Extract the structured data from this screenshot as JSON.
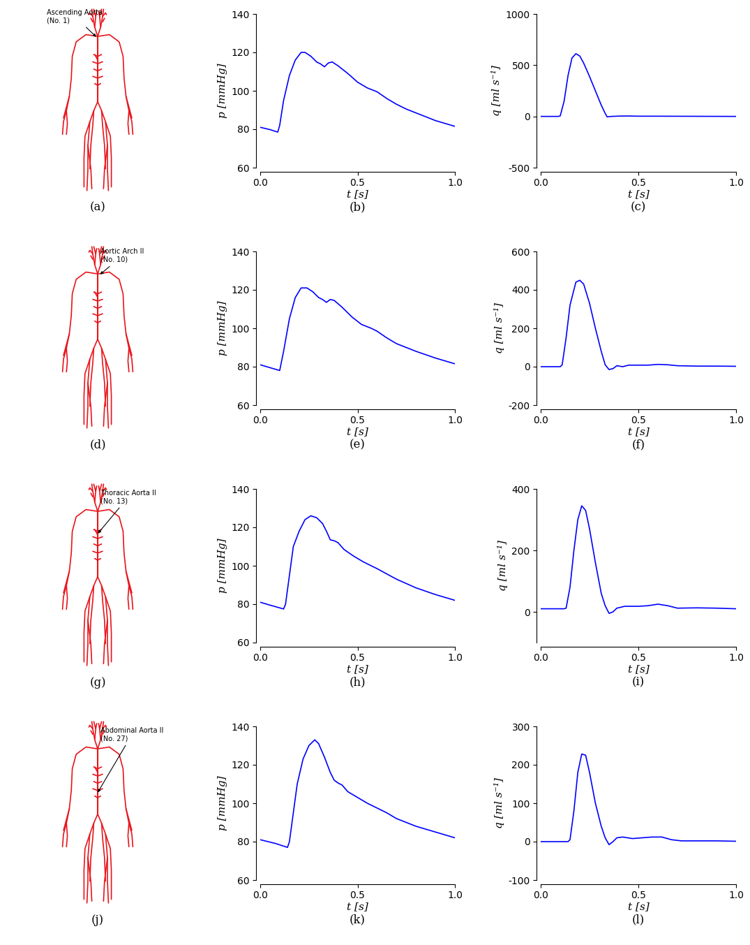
{
  "diagrams": [
    {
      "annotation": "Ascending Aorta\n(No. 1)",
      "caption": "(a)"
    },
    {
      "annotation": "Aortic Arch II\n(No. 10)",
      "caption": "(d)"
    },
    {
      "annotation": "Thoracic Aorta II\n(No. 13)",
      "caption": "(g)"
    },
    {
      "annotation": "Abdominal Aorta II\n(No. 27)",
      "caption": "(j)"
    }
  ],
  "chart_data": [
    {
      "type": "line",
      "caption": "(b)",
      "xlabel": "t [s]",
      "ylabel": "p [mmHg]",
      "color": "#0000ff",
      "x": [
        0.0,
        0.05,
        0.09,
        0.1,
        0.12,
        0.15,
        0.18,
        0.21,
        0.23,
        0.26,
        0.29,
        0.31,
        0.33,
        0.35,
        0.37,
        0.4,
        0.45,
        0.5,
        0.55,
        0.6,
        0.65,
        0.7,
        0.75,
        0.8,
        0.85,
        0.9,
        0.95,
        1.0
      ],
      "values": [
        81,
        79.8,
        78.5,
        82,
        95,
        108,
        116,
        120,
        120,
        118,
        115,
        114,
        112.5,
        114.5,
        115,
        113,
        109,
        104.5,
        101.5,
        99.5,
        96,
        93,
        90.5,
        88.5,
        86.5,
        84.5,
        83,
        81.5
      ],
      "xlim": [
        0.0,
        1.0
      ],
      "xticks": [
        0.0,
        0.5,
        1.0
      ],
      "ylim": [
        60,
        140
      ],
      "yticks": [
        60,
        80,
        100,
        120,
        140
      ]
    },
    {
      "type": "line",
      "caption": "(c)",
      "xlabel": "t [s]",
      "ylabel": "q [ml s⁻¹]",
      "color": "#0000ff",
      "x": [
        0.0,
        0.09,
        0.1,
        0.12,
        0.14,
        0.16,
        0.18,
        0.2,
        0.22,
        0.25,
        0.28,
        0.31,
        0.33,
        0.34,
        0.36,
        0.4,
        0.45,
        0.5,
        0.6,
        0.8,
        1.0
      ],
      "values": [
        0,
        0,
        5,
        150,
        400,
        570,
        612,
        590,
        520,
        390,
        250,
        110,
        30,
        -5,
        0,
        3,
        4,
        2,
        2,
        1,
        0
      ],
      "xlim": [
        0.0,
        1.0
      ],
      "xticks": [
        0.0,
        0.5,
        1.0
      ],
      "ylim": [
        -500,
        1000
      ],
      "yticks": [
        -500,
        0,
        500,
        1000
      ]
    },
    {
      "type": "line",
      "caption": "(e)",
      "xlabel": "t [s]",
      "ylabel": "p [mmHg]",
      "color": "#0000ff",
      "x": [
        0.0,
        0.1,
        0.12,
        0.15,
        0.18,
        0.21,
        0.24,
        0.27,
        0.3,
        0.32,
        0.34,
        0.36,
        0.38,
        0.42,
        0.47,
        0.52,
        0.57,
        0.6,
        0.65,
        0.7,
        0.8,
        0.9,
        1.0
      ],
      "values": [
        81,
        78,
        88,
        105,
        116,
        121,
        121,
        119,
        116,
        115,
        113.5,
        115,
        114.5,
        111,
        106,
        102,
        100,
        98.5,
        95,
        92,
        88,
        84.5,
        81.5
      ],
      "xlim": [
        0.0,
        1.0
      ],
      "xticks": [
        0.0,
        0.5,
        1.0
      ],
      "ylim": [
        60,
        140
      ],
      "yticks": [
        60,
        80,
        100,
        120,
        140
      ]
    },
    {
      "type": "line",
      "caption": "(f)",
      "xlabel": "t [s]",
      "ylabel": "q [ml s⁻¹]",
      "color": "#0000ff",
      "x": [
        0.0,
        0.1,
        0.11,
        0.13,
        0.15,
        0.18,
        0.2,
        0.22,
        0.25,
        0.28,
        0.31,
        0.33,
        0.35,
        0.37,
        0.39,
        0.42,
        0.45,
        0.5,
        0.55,
        0.6,
        0.65,
        0.7,
        0.8,
        0.9,
        1.0
      ],
      "values": [
        0,
        0,
        10,
        150,
        320,
        440,
        450,
        430,
        330,
        200,
        80,
        10,
        -15,
        -10,
        5,
        0,
        8,
        8,
        8,
        12,
        10,
        5,
        3,
        3,
        2
      ],
      "xlim": [
        0.0,
        1.0
      ],
      "xticks": [
        0.0,
        0.5,
        1.0
      ],
      "ylim": [
        -200,
        600
      ],
      "yticks": [
        -200,
        0,
        200,
        400,
        600
      ]
    },
    {
      "type": "line",
      "caption": "(h)",
      "xlabel": "t [s]",
      "ylabel": "p [mmHg]",
      "color": "#0000ff",
      "x": [
        0.0,
        0.05,
        0.12,
        0.13,
        0.15,
        0.17,
        0.2,
        0.23,
        0.26,
        0.29,
        0.32,
        0.34,
        0.36,
        0.38,
        0.4,
        0.43,
        0.48,
        0.53,
        0.6,
        0.7,
        0.8,
        0.9,
        1.0
      ],
      "values": [
        81,
        79.5,
        77.5,
        80,
        95,
        110,
        118,
        124,
        126,
        125,
        122,
        118,
        113.5,
        113,
        112,
        108.5,
        105,
        102,
        98.5,
        93,
        88.5,
        85,
        82
      ],
      "xlim": [
        0.0,
        1.0
      ],
      "xticks": [
        0.0,
        0.5,
        1.0
      ],
      "ylim": [
        60,
        140
      ],
      "yticks": [
        60,
        80,
        100,
        120,
        140
      ]
    },
    {
      "type": "line",
      "caption": "(i)",
      "xlabel": "t [s]",
      "ylabel": "q [ml s⁻¹]",
      "color": "#0000ff",
      "x": [
        0.0,
        0.12,
        0.13,
        0.15,
        0.17,
        0.19,
        0.21,
        0.23,
        0.25,
        0.28,
        0.31,
        0.33,
        0.35,
        0.37,
        0.39,
        0.43,
        0.5,
        0.55,
        0.6,
        0.65,
        0.7,
        0.8,
        0.9,
        1.0
      ],
      "values": [
        10,
        10,
        12,
        80,
        200,
        300,
        345,
        330,
        270,
        160,
        60,
        20,
        -5,
        0,
        12,
        18,
        18,
        20,
        25,
        20,
        12,
        13,
        12,
        10
      ],
      "xlim": [
        0.0,
        1.0
      ],
      "xticks": [
        0.0,
        0.5,
        1.0
      ],
      "ylim": [
        -100,
        400
      ],
      "yticks": [
        0,
        200,
        400
      ]
    },
    {
      "type": "line",
      "caption": "(k)",
      "xlabel": "t [s]",
      "ylabel": "p [mmHg]",
      "color": "#0000ff",
      "x": [
        0.0,
        0.08,
        0.14,
        0.15,
        0.17,
        0.19,
        0.22,
        0.25,
        0.28,
        0.3,
        0.33,
        0.36,
        0.38,
        0.4,
        0.42,
        0.45,
        0.5,
        0.55,
        0.6,
        0.65,
        0.7,
        0.8,
        0.9,
        1.0
      ],
      "values": [
        81,
        79,
        77,
        80,
        95,
        110,
        123,
        130,
        133,
        131,
        124,
        116,
        112,
        110.5,
        109.5,
        106,
        103,
        100,
        97.5,
        95,
        92,
        88,
        85,
        82
      ],
      "xlim": [
        0.0,
        1.0
      ],
      "xticks": [
        0.0,
        0.5,
        1.0
      ],
      "ylim": [
        60,
        140
      ],
      "yticks": [
        60,
        80,
        100,
        120,
        140
      ]
    },
    {
      "type": "line",
      "caption": "(l)",
      "xlabel": "t [s]",
      "ylabel": "q [ml s⁻¹]",
      "color": "#0000ff",
      "x": [
        0.0,
        0.14,
        0.15,
        0.17,
        0.19,
        0.21,
        0.23,
        0.25,
        0.28,
        0.31,
        0.33,
        0.35,
        0.37,
        0.39,
        0.42,
        0.47,
        0.52,
        0.57,
        0.62,
        0.67,
        0.72,
        0.8,
        0.9,
        1.0
      ],
      "values": [
        0,
        0,
        5,
        80,
        180,
        228,
        225,
        180,
        100,
        40,
        10,
        -8,
        0,
        10,
        12,
        8,
        10,
        12,
        12,
        5,
        2,
        2,
        2,
        1
      ],
      "xlim": [
        0.0,
        1.0
      ],
      "xticks": [
        0.0,
        0.5,
        1.0
      ],
      "ylim": [
        -100,
        300
      ],
      "yticks": [
        -100,
        0,
        100,
        200,
        300
      ]
    }
  ]
}
